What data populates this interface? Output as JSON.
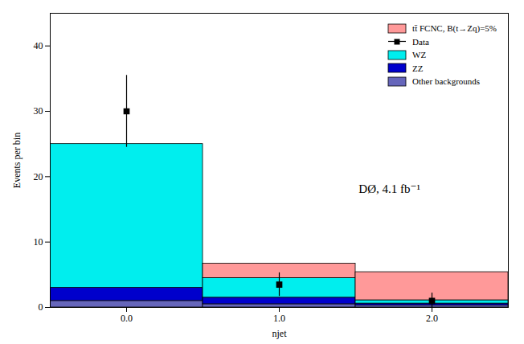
{
  "chart_data": {
    "type": "bar",
    "stacked": true,
    "xlabel": "njet",
    "ylabel": "Events per bin",
    "bins": [
      -0.5,
      0.5,
      1.5,
      2.5
    ],
    "x": [
      0,
      1,
      2
    ],
    "xlim": [
      -0.5,
      2.5
    ],
    "xticks": [
      0,
      1,
      2
    ],
    "ylim": [
      0,
      45
    ],
    "yticks": [
      0,
      10,
      20,
      30,
      40
    ],
    "legend": "upper right",
    "series": [
      {
        "name": "tt̄ FCNC, B(t→Zq)=5%",
        "type": "bar",
        "color": "#FF9999",
        "values": [
          0.0,
          2.2,
          4.3
        ]
      },
      {
        "name": "Data",
        "type": "scatter",
        "color": "#000000",
        "marker": "square",
        "values": [
          30.0,
          3.5,
          1.0
        ],
        "errors_up": [
          5.5,
          1.8,
          1.2
        ],
        "errors_dn": [
          5.5,
          1.8,
          1.0
        ]
      },
      {
        "name": "WZ",
        "type": "bar",
        "color": "#00EEEE",
        "values": [
          22.0,
          3.0,
          0.5
        ]
      },
      {
        "name": "ZZ",
        "type": "bar",
        "color": "#0000CC",
        "values": [
          2.0,
          1.0,
          0.3
        ]
      },
      {
        "name": "Other backgrounds",
        "type": "bar",
        "color": "#6666BB",
        "values": [
          1.0,
          0.5,
          0.3
        ]
      }
    ],
    "annotations": [
      {
        "text": "DØ, 4.1 fb⁻¹",
        "x": 1.52,
        "y": 17.5
      }
    ]
  }
}
